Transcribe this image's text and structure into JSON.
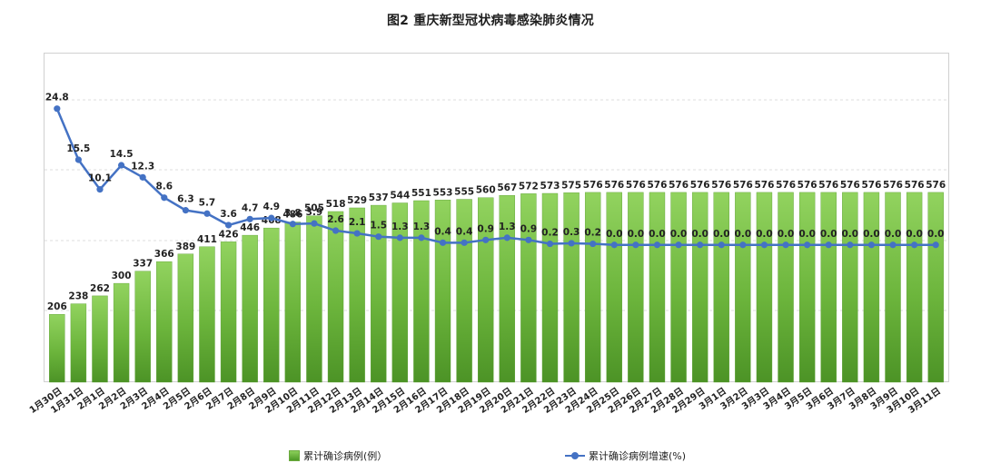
{
  "chart_data": {
    "type": "bar+line",
    "title": "图2   重庆新型冠状病毒感染肺炎情况",
    "categories": [
      "1月30日",
      "1月31日",
      "2月1日",
      "2月2日",
      "2月3日",
      "2月4日",
      "2月5日",
      "2月6日",
      "2月7日",
      "2月8日",
      "2月9日",
      "2月10日",
      "2月11日",
      "2月12日",
      "2月13日",
      "2月14日",
      "2月15日",
      "2月16日",
      "2月17日",
      "2月18日",
      "2月19日",
      "2月20日",
      "2月21日",
      "2月22日",
      "2月23日",
      "2月24日",
      "2月25日",
      "2月26日",
      "2月27日",
      "2月28日",
      "2月29日",
      "3月1日",
      "3月2日",
      "3月3日",
      "3月4日",
      "3月5日",
      "3月6日",
      "3月7日",
      "3月8日",
      "3月9日",
      "3月10日",
      "3月11日"
    ],
    "series": [
      {
        "name": "累计确诊病例(例）",
        "type": "bar",
        "color": "#70ad47",
        "values": [
          206,
          238,
          262,
          300,
          337,
          366,
          389,
          411,
          426,
          446,
          468,
          486,
          505,
          518,
          529,
          537,
          544,
          551,
          553,
          555,
          560,
          567,
          572,
          573,
          575,
          576,
          576,
          576,
          576,
          576,
          576,
          576,
          576,
          576,
          576,
          576,
          576,
          576,
          576,
          576,
          576,
          576
        ],
        "labels": [
          "206",
          "238",
          "262",
          "300",
          "337",
          "366",
          "389",
          "411",
          "426",
          "446",
          "468",
          "486",
          "505",
          "518",
          "529",
          "537",
          "544",
          "551",
          "553",
          "555",
          "560",
          "567",
          "572",
          "573",
          "575",
          "576",
          "576",
          "576",
          "576",
          "576",
          "576",
          "576",
          "576",
          "576",
          "576",
          "576",
          "576",
          "576",
          "576",
          "576",
          "576",
          "576"
        ]
      },
      {
        "name": "累计确诊病例增速(%)",
        "type": "line",
        "color": "#4472c4",
        "values": [
          24.8,
          15.5,
          10.1,
          14.5,
          12.3,
          8.6,
          6.3,
          5.7,
          3.6,
          4.7,
          4.9,
          3.8,
          3.9,
          2.6,
          2.1,
          1.5,
          1.3,
          1.3,
          0.4,
          0.4,
          0.9,
          1.3,
          0.9,
          0.2,
          0.3,
          0.2,
          0,
          0,
          0,
          0,
          0,
          0,
          0,
          0,
          0,
          0,
          0,
          0,
          0,
          0,
          0,
          0
        ],
        "labels": [
          "24.8",
          "15.5",
          "10.1",
          "14.5",
          "12.3",
          "8.6",
          "6.3",
          "5.7",
          "3.6",
          "4.7",
          "4.9",
          "3.8",
          "3.9",
          "2.6",
          "2.1",
          "1.5",
          "1.3",
          "1.3",
          "0.4",
          "0.4",
          "0.9",
          "1.3",
          "0.9",
          "0.2",
          "0.3",
          "0.2",
          "0.0",
          "0.0",
          "0.0",
          "0.0",
          "0.0",
          "0.0",
          "0.0",
          "0.0",
          "0.0",
          "0.0",
          "0.0",
          "0.0",
          "0.0",
          "0.0",
          "0.0",
          "0.0"
        ]
      }
    ],
    "bar_axis_range": [
      0,
      1000
    ],
    "line_axis_range": [
      -25,
      35
    ],
    "gridlines": true,
    "legend_position": "bottom"
  }
}
